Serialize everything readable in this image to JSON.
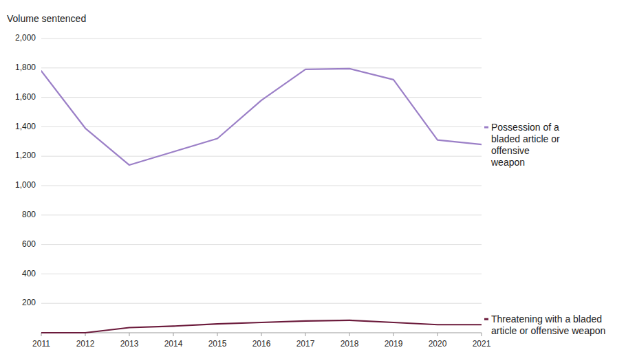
{
  "chart_data": {
    "type": "line",
    "y_label": "Volume sentenced",
    "x": [
      2011,
      2012,
      2013,
      2014,
      2015,
      2016,
      2017,
      2018,
      2019,
      2020,
      2021
    ],
    "xlim": [
      2011,
      2021
    ],
    "xticks": [
      2011,
      2012,
      2013,
      2014,
      2015,
      2016,
      2017,
      2018,
      2019,
      2020,
      2021
    ],
    "ylim": [
      0,
      2000
    ],
    "yticks": [
      200,
      400,
      600,
      800,
      {
        "value": 1000,
        "label": "1,000"
      },
      {
        "value": 1200,
        "label": "1,200"
      },
      {
        "value": 1400,
        "label": "1,400"
      },
      {
        "value": 1600,
        "label": "1,600"
      },
      {
        "value": 1800,
        "label": "1,800"
      },
      {
        "value": 2000,
        "label": "2,000"
      }
    ],
    "grid": true,
    "series": [
      {
        "name": "Possession of a\nbladed article or\noffensive\nweapon",
        "color": "#9b7fc7",
        "values": [
          1780,
          1390,
          1140,
          1230,
          1320,
          1580,
          1790,
          1795,
          1720,
          1310,
          1280
        ]
      },
      {
        "name": "Threatening with a bladed\narticle or offensive weapon",
        "color": "#6b1a3b",
        "values": [
          0,
          0,
          35,
          45,
          60,
          70,
          80,
          85,
          70,
          55,
          55
        ]
      }
    ]
  }
}
